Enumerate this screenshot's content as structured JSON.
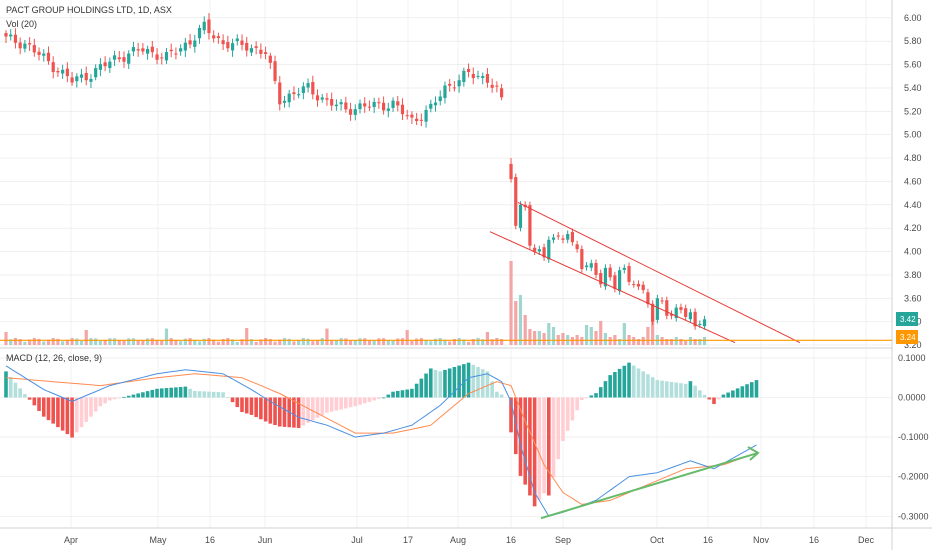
{
  "chart_data": [
    {
      "type": "candlestick",
      "title": "PACT GROUP HOLDINGS LTD, 1D, ASX",
      "yticks": [
        "6.00",
        "5.80",
        "5.60",
        "5.40",
        "5.20",
        "5.00",
        "4.80",
        "4.60",
        "4.40",
        "4.20",
        "4.00",
        "3.80",
        "3.60",
        "3.40",
        "3.20"
      ],
      "ylim": [
        3.2,
        6.05
      ],
      "last_price": "3.42",
      "support_level_label": "3.24",
      "support_level": 3.24,
      "anchors": [
        {
          "i": 0,
          "c": 5.82
        },
        {
          "i": 4,
          "c": 5.78
        },
        {
          "i": 9,
          "c": 5.62
        },
        {
          "i": 14,
          "c": 5.46
        },
        {
          "i": 18,
          "c": 5.52
        },
        {
          "i": 23,
          "c": 5.65
        },
        {
          "i": 29,
          "c": 5.73
        },
        {
          "i": 34,
          "c": 5.66
        },
        {
          "i": 39,
          "c": 5.8
        },
        {
          "i": 42,
          "c": 5.92
        },
        {
          "i": 46,
          "c": 5.78
        },
        {
          "i": 51,
          "c": 5.76
        },
        {
          "i": 55,
          "c": 5.7
        },
        {
          "i": 58,
          "c": 5.3
        },
        {
          "i": 64,
          "c": 5.4
        },
        {
          "i": 68,
          "c": 5.28
        },
        {
          "i": 72,
          "c": 5.22
        },
        {
          "i": 78,
          "c": 5.25
        },
        {
          "i": 82,
          "c": 5.26
        },
        {
          "i": 86,
          "c": 5.12
        },
        {
          "i": 90,
          "c": 5.22
        },
        {
          "i": 93,
          "c": 5.4
        },
        {
          "i": 98,
          "c": 5.52
        },
        {
          "i": 102,
          "c": 5.48
        },
        {
          "i": 105,
          "c": 5.32
        }
      ],
      "series_b": [
        4.62,
        4.22,
        4.4,
        4.38,
        4.05,
        4.0,
        4.02,
        3.95,
        4.1,
        4.12,
        4.13,
        4.1,
        4.15,
        4.08,
        4.02,
        3.85,
        3.88,
        3.9,
        3.8,
        3.72,
        3.86,
        3.78,
        3.68,
        3.84,
        3.86,
        3.74,
        3.72,
        3.7,
        3.67,
        3.55,
        3.4,
        3.6,
        3.58,
        3.45,
        3.45,
        3.52,
        3.5,
        3.44,
        3.48,
        3.36,
        3.38,
        3.42
      ],
      "volume_label": "Vol (20)",
      "xticks": [
        "Apr",
        "May",
        "16",
        "Jun",
        "Jul",
        "17",
        "Aug",
        "16",
        "Sep",
        "Oct",
        "16",
        "Nov",
        "16",
        "Dec"
      ]
    },
    {
      "type": "line",
      "title": "MACD (12, 26, close, 9)",
      "yticks": [
        "0.1000",
        "0.0000",
        "-0.1000",
        "-0.2000",
        "-0.3000"
      ],
      "ylim": [
        -0.36,
        0.12
      ],
      "macd_anchors": [
        {
          "i": 0,
          "v": 0.08
        },
        {
          "i": 8,
          "v": 0.02
        },
        {
          "i": 14,
          "v": -0.01
        },
        {
          "i": 22,
          "v": 0.03
        },
        {
          "i": 32,
          "v": 0.06
        },
        {
          "i": 38,
          "v": 0.07
        },
        {
          "i": 46,
          "v": 0.06
        },
        {
          "i": 52,
          "v": 0.02
        },
        {
          "i": 56,
          "v": -0.01
        },
        {
          "i": 62,
          "v": -0.05
        },
        {
          "i": 68,
          "v": -0.07
        },
        {
          "i": 74,
          "v": -0.1
        },
        {
          "i": 80,
          "v": -0.09
        },
        {
          "i": 86,
          "v": -0.07
        },
        {
          "i": 92,
          "v": -0.02
        },
        {
          "i": 98,
          "v": 0.05
        },
        {
          "i": 102,
          "v": 0.06
        },
        {
          "i": 105,
          "v": 0.04
        },
        {
          "i": 107,
          "v": -0.01
        },
        {
          "i": 109,
          "v": -0.12
        },
        {
          "i": 112,
          "v": -0.24
        },
        {
          "i": 115,
          "v": -0.3
        },
        {
          "i": 118,
          "v": -0.29
        },
        {
          "i": 125,
          "v": -0.26
        },
        {
          "i": 132,
          "v": -0.2
        },
        {
          "i": 138,
          "v": -0.19
        },
        {
          "i": 145,
          "v": -0.16
        },
        {
          "i": 150,
          "v": -0.18
        },
        {
          "i": 156,
          "v": -0.14
        },
        {
          "i": 159,
          "v": -0.12
        }
      ],
      "signal_anchors": [
        {
          "i": 0,
          "v": 0.05
        },
        {
          "i": 10,
          "v": 0.04
        },
        {
          "i": 20,
          "v": 0.03
        },
        {
          "i": 32,
          "v": 0.05
        },
        {
          "i": 40,
          "v": 0.06
        },
        {
          "i": 50,
          "v": 0.05
        },
        {
          "i": 58,
          "v": 0.01
        },
        {
          "i": 66,
          "v": -0.04
        },
        {
          "i": 74,
          "v": -0.09
        },
        {
          "i": 82,
          "v": -0.09
        },
        {
          "i": 90,
          "v": -0.07
        },
        {
          "i": 98,
          "v": 0.01
        },
        {
          "i": 104,
          "v": 0.04
        },
        {
          "i": 107,
          "v": 0.03
        },
        {
          "i": 110,
          "v": -0.06
        },
        {
          "i": 114,
          "v": -0.17
        },
        {
          "i": 118,
          "v": -0.24
        },
        {
          "i": 122,
          "v": -0.27
        },
        {
          "i": 128,
          "v": -0.26
        },
        {
          "i": 136,
          "v": -0.22
        },
        {
          "i": 144,
          "v": -0.18
        },
        {
          "i": 152,
          "v": -0.17
        },
        {
          "i": 159,
          "v": -0.14
        }
      ]
    }
  ],
  "colors": {
    "up": "#26a69a",
    "down": "#ef5350",
    "up_vol": "#9fd6cf",
    "down_vol": "#f4a6a6",
    "hist_up_strong": "#26a69a",
    "hist_up_weak": "#b2dfdb",
    "hist_down_strong": "#ef5350",
    "hist_down_weak": "#ffcdd2",
    "macd": "#4a90e2",
    "signal": "#ff8a50",
    "channel": "#e53935",
    "support": "#ff9800",
    "trend": "#66bb6a",
    "grid": "#e6e6e6",
    "axis_text": "#4a4a4a"
  }
}
